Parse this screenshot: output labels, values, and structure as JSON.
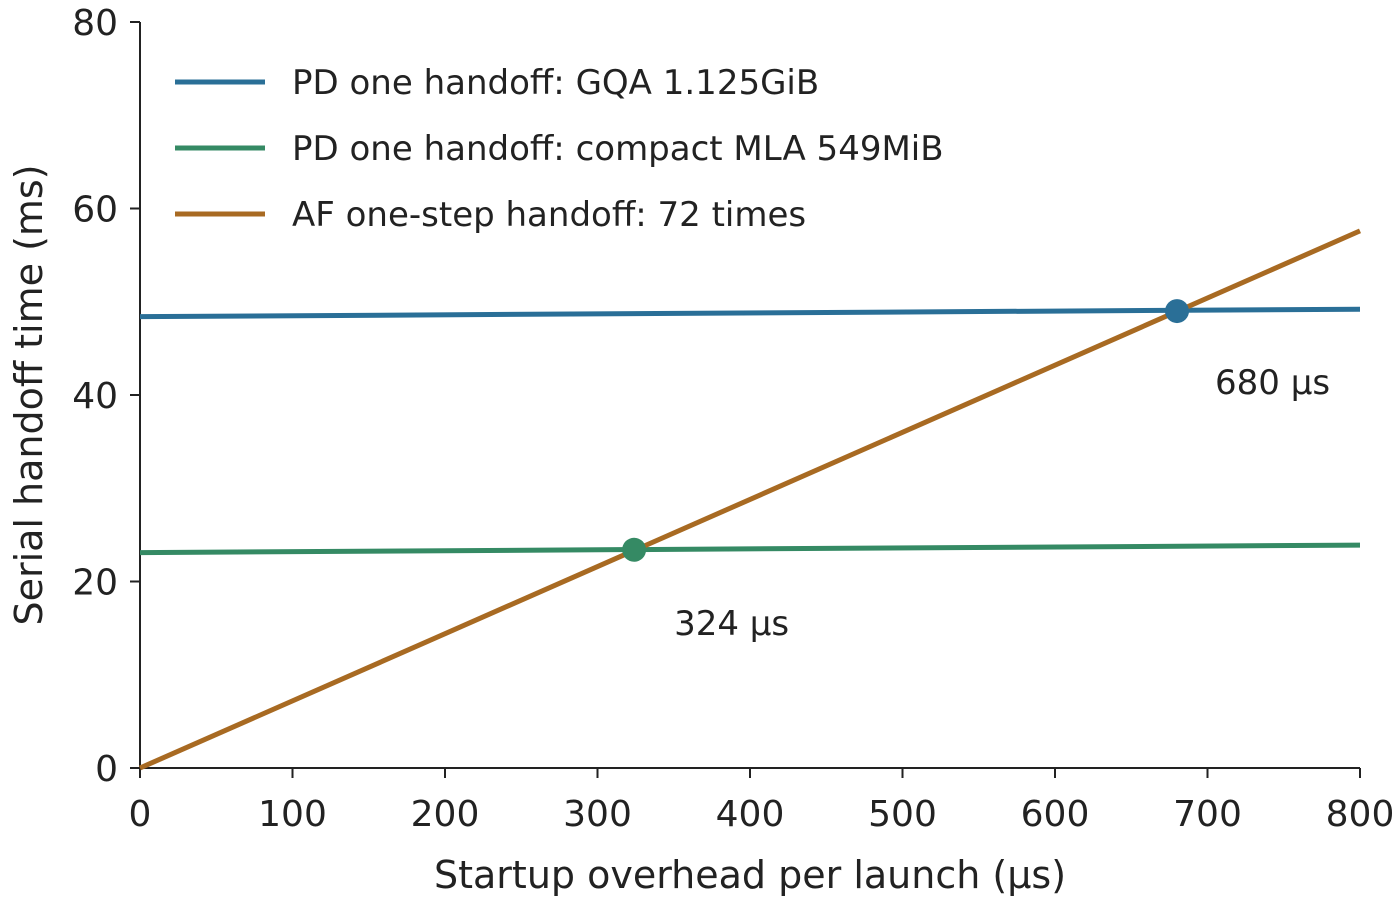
{
  "chart_data": {
    "type": "line",
    "title": "",
    "xlabel": "Startup overhead per launch (µs)",
    "ylabel": "Serial handoff time (ms)",
    "xlim": [
      0,
      800
    ],
    "ylim": [
      0,
      80
    ],
    "xticks": [
      "0",
      "100",
      "200",
      "300",
      "400",
      "500",
      "600",
      "700",
      "800"
    ],
    "yticks": [
      "0",
      "20",
      "40",
      "60",
      "80"
    ],
    "grid": false,
    "legend_position": "top-left",
    "series": [
      {
        "name": "PD one handoff: GQA 1.125GiB",
        "color": "#2a6f97",
        "x": [
          0,
          800
        ],
        "y": [
          48.4,
          49.2
        ]
      },
      {
        "name": "PD one handoff: compact MLA 549MiB",
        "color": "#358a64",
        "x": [
          0,
          800
        ],
        "y": [
          23.1,
          23.9
        ]
      },
      {
        "name": "AF one-step handoff: 72 times",
        "color": "#a86a22",
        "x": [
          0,
          800
        ],
        "y": [
          0,
          57.6
        ]
      }
    ],
    "intersections": [
      {
        "x": 324,
        "y": 23.4,
        "color": "#358a64",
        "label": "324 µs"
      },
      {
        "x": 680,
        "y": 49.0,
        "color": "#2a6f97",
        "label": "680 µs"
      }
    ]
  }
}
